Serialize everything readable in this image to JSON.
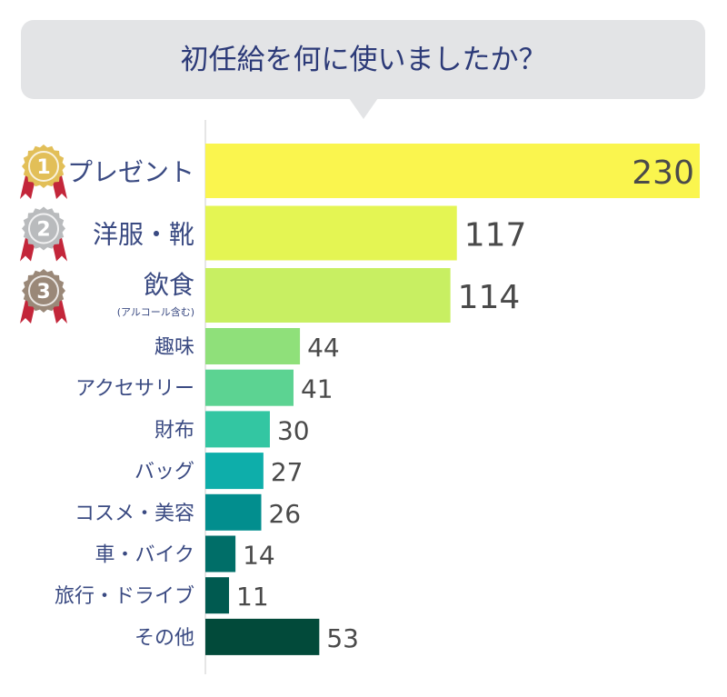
{
  "chart_data": {
    "type": "bar",
    "orientation": "horizontal",
    "title": "初任給を何に使いましたか？",
    "categories": [
      "プレゼント",
      "洋服・靴",
      "飲食",
      "趣味",
      "アクセサリー",
      "財布",
      "バッグ",
      "コスメ・美容",
      "車・バイク",
      "旅行・ドライブ",
      "その他"
    ],
    "category_notes": [
      "",
      "",
      "(アルコール含む)",
      "",
      "",
      "",
      "",
      "",
      "",
      "",
      ""
    ],
    "values": [
      230,
      117,
      114,
      44,
      41,
      30,
      27,
      26,
      14,
      11,
      53
    ],
    "value_labels": [
      "230",
      "117",
      "114",
      "44",
      "41",
      "30",
      "27",
      "26",
      "14",
      "11",
      "53"
    ],
    "bar_colors": [
      "#faf54e",
      "#e4f553",
      "#c8ef62",
      "#8fe07a",
      "#5cd392",
      "#33c6a2",
      "#0eaeaa",
      "#028e8e",
      "#006e68",
      "#005a50",
      "#024a3a"
    ],
    "xlim": [
      0,
      230
    ],
    "grid": false,
    "legend": "none",
    "rank_badges": [
      {
        "rank": "1",
        "color": "#e2bf58"
      },
      {
        "rank": "2",
        "color": "#b9bbbd"
      },
      {
        "rank": "3",
        "color": "#9a8878"
      }
    ]
  }
}
